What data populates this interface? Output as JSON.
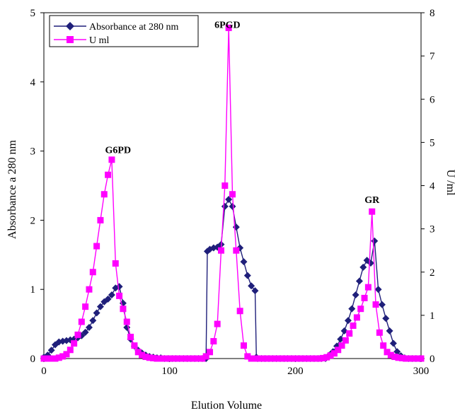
{
  "chart_data": {
    "type": "line",
    "title": "",
    "xlabel": "Elution Volume",
    "ylabel_left": "Absorbance a 280 nm",
    "ylabel_right": "U /ml",
    "xlim": [
      0,
      300
    ],
    "ylim_left": [
      0,
      5
    ],
    "ylim_right": [
      0,
      8
    ],
    "x_ticks": [
      0,
      100,
      200,
      300
    ],
    "y_left_ticks": [
      0,
      1,
      2,
      3,
      4,
      5
    ],
    "y_right_ticks": [
      0,
      1,
      2,
      3,
      4,
      5,
      6,
      7,
      8
    ],
    "grid": false,
    "legend_position": "top-left",
    "annotations": [
      {
        "text": "G6PD",
        "x": 59,
        "y_right": 4.75
      },
      {
        "text": "6PGD",
        "x": 146,
        "y_right": 7.65
      },
      {
        "text": "GR",
        "x": 261,
        "y_right": 3.6
      }
    ],
    "series": [
      {
        "name": "Absorbance at 280 nm",
        "axis": "left",
        "color": "#1f1f7a",
        "marker": "diamond",
        "x": [
          0,
          3,
          6,
          9,
          12,
          15,
          18,
          21,
          24,
          27,
          30,
          33,
          36,
          39,
          42,
          45,
          48,
          51,
          54,
          57,
          60,
          63,
          66,
          69,
          72,
          75,
          78,
          81,
          84,
          87,
          90,
          93,
          96,
          99,
          102,
          105,
          108,
          111,
          114,
          117,
          120,
          123,
          126,
          129,
          130,
          132,
          135,
          138,
          141,
          144,
          147,
          150,
          153,
          156,
          159,
          162,
          165,
          168,
          169,
          170,
          173,
          176,
          179,
          182,
          185,
          188,
          191,
          194,
          197,
          200,
          203,
          206,
          209,
          212,
          215,
          218,
          221,
          224,
          227,
          230,
          233,
          236,
          239,
          242,
          245,
          248,
          251,
          254,
          257,
          260,
          263,
          266,
          269,
          272,
          275,
          278,
          281,
          284,
          287,
          290,
          293,
          296,
          299
        ],
        "y": [
          0.02,
          0.05,
          0.12,
          0.2,
          0.24,
          0.25,
          0.26,
          0.27,
          0.28,
          0.3,
          0.33,
          0.38,
          0.45,
          0.55,
          0.66,
          0.75,
          0.82,
          0.86,
          0.92,
          1.02,
          1.04,
          0.8,
          0.45,
          0.28,
          0.18,
          0.12,
          0.08,
          0.05,
          0.03,
          0.02,
          0.01,
          0.01,
          0,
          0,
          0,
          0,
          0,
          0,
          0,
          0,
          0,
          0,
          0,
          0,
          1.55,
          1.58,
          1.6,
          1.61,
          1.65,
          2.2,
          2.3,
          2.2,
          1.9,
          1.6,
          1.4,
          1.2,
          1.05,
          0.98,
          0.02,
          0,
          0,
          0,
          0,
          0,
          0,
          0,
          0,
          0,
          0,
          0,
          0,
          0,
          0,
          0,
          0,
          0,
          0,
          0,
          0.05,
          0.1,
          0.18,
          0.28,
          0.4,
          0.55,
          0.72,
          0.92,
          1.12,
          1.32,
          1.42,
          1.38,
          1.7,
          1.0,
          0.78,
          0.58,
          0.4,
          0.22,
          0.1,
          0.04,
          0.01,
          0,
          0,
          0,
          0
        ]
      },
      {
        "name": "U ml",
        "axis": "right",
        "color": "#ff00ff",
        "marker": "square",
        "x": [
          0,
          3,
          6,
          9,
          12,
          15,
          18,
          21,
          24,
          27,
          30,
          33,
          36,
          39,
          42,
          45,
          48,
          51,
          54,
          57,
          60,
          63,
          66,
          69,
          72,
          75,
          78,
          81,
          84,
          87,
          90,
          93,
          96,
          99,
          102,
          105,
          108,
          111,
          114,
          117,
          120,
          123,
          126,
          129,
          132,
          135,
          138,
          141,
          144,
          147,
          150,
          153,
          156,
          159,
          162,
          165,
          168,
          171,
          174,
          177,
          180,
          183,
          186,
          189,
          192,
          195,
          198,
          201,
          204,
          207,
          210,
          213,
          216,
          219,
          222,
          225,
          228,
          231,
          234,
          237,
          240,
          243,
          246,
          249,
          252,
          255,
          258,
          261,
          264,
          267,
          270,
          273,
          276,
          279,
          282,
          285,
          288,
          291,
          294,
          297,
          300
        ],
        "y": [
          0,
          0,
          0,
          0,
          0.02,
          0.05,
          0.1,
          0.2,
          0.35,
          0.55,
          0.85,
          1.2,
          1.6,
          2.0,
          2.6,
          3.2,
          3.8,
          4.25,
          4.6,
          2.2,
          1.45,
          1.15,
          0.85,
          0.5,
          0.3,
          0.15,
          0.08,
          0.04,
          0.02,
          0.01,
          0,
          0,
          0,
          0,
          0,
          0,
          0,
          0,
          0,
          0,
          0,
          0,
          0,
          0.05,
          0.15,
          0.4,
          0.8,
          2.5,
          4.0,
          7.65,
          3.8,
          2.5,
          1.1,
          0.3,
          0.05,
          0,
          0,
          0,
          0,
          0,
          0,
          0,
          0,
          0,
          0,
          0,
          0,
          0,
          0,
          0,
          0,
          0,
          0,
          0,
          0.01,
          0.03,
          0.07,
          0.12,
          0.2,
          0.3,
          0.42,
          0.58,
          0.76,
          0.95,
          1.15,
          1.4,
          1.65,
          3.4,
          1.25,
          0.6,
          0.3,
          0.15,
          0.08,
          0.04,
          0.02,
          0.01,
          0,
          0,
          0,
          0,
          0
        ]
      }
    ]
  }
}
